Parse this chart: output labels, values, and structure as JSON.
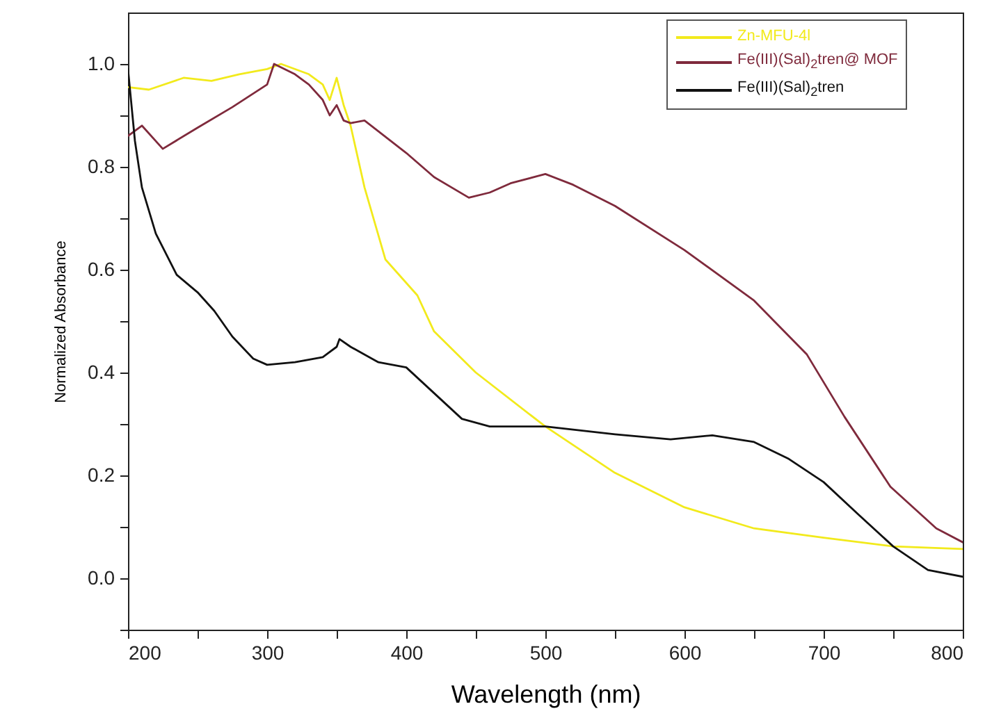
{
  "chart_data": {
    "type": "line",
    "xlabel": "Wavelength (nm)",
    "ylabel": "Normalized Absorbance",
    "xlim": [
      200,
      800
    ],
    "ylim": [
      -0.1,
      1.1
    ],
    "xticks": [
      200,
      {
        "value": 250,
        "label": null
      },
      300,
      {
        "value": 350,
        "label": null
      },
      400,
      {
        "value": 450,
        "label": null
      },
      500,
      {
        "value": 550,
        "label": null
      },
      600,
      {
        "value": 650,
        "label": null
      },
      700,
      {
        "value": 750,
        "label": null
      },
      800
    ],
    "yticks": [
      {
        "value": -0.1,
        "label": null
      },
      {
        "value": 0,
        "label": "0.0"
      },
      {
        "value": 0.1,
        "label": null
      },
      {
        "value": 0.2,
        "label": "0.2"
      },
      {
        "value": 0.3,
        "label": null
      },
      {
        "value": 0.4,
        "label": "0.4"
      },
      {
        "value": 0.5,
        "label": null
      },
      {
        "value": 0.6,
        "label": "0.6"
      },
      {
        "value": 0.7,
        "label": null
      },
      {
        "value": 0.8,
        "label": "0.8"
      },
      {
        "value": 0.9,
        "label": null
      },
      {
        "value": 1.0,
        "label": "1.0"
      }
    ],
    "grid": false,
    "legend": "top right",
    "marker": "none",
    "line_style": "solid",
    "series": [
      {
        "name": "Zn-MFU-4l",
        "color": "#f2ea1c",
        "x": [
          200,
          215,
          240,
          260,
          280,
          300,
          310,
          330,
          340,
          345,
          350,
          355,
          360,
          370,
          385,
          408,
          420,
          450,
          500,
          550,
          600,
          650,
          700,
          750,
          800
        ],
        "values": [
          0.955,
          0.95,
          0.973,
          0.967,
          0.98,
          0.99,
          1.0,
          0.98,
          0.96,
          0.93,
          0.973,
          0.92,
          0.88,
          0.76,
          0.62,
          0.55,
          0.48,
          0.4,
          0.295,
          0.205,
          0.138,
          0.097,
          0.079,
          0.062,
          0.057
        ]
      },
      {
        "name": "Fe(III)(Sal)$_{2}$tren@ MOF",
        "color": "#7f2a3c",
        "x": [
          200,
          210,
          225,
          250,
          275,
          300,
          305,
          320,
          330,
          340,
          345,
          350,
          355,
          360,
          370,
          400,
          420,
          445,
          460,
          475,
          500,
          520,
          550,
          600,
          650,
          688,
          715,
          748,
          781,
          800
        ],
        "values": [
          0.86,
          0.88,
          0.835,
          0.876,
          0.916,
          0.96,
          1.0,
          0.98,
          0.96,
          0.93,
          0.9,
          0.92,
          0.89,
          0.885,
          0.89,
          0.827,
          0.78,
          0.74,
          0.75,
          0.768,
          0.786,
          0.765,
          0.724,
          0.638,
          0.54,
          0.435,
          0.314,
          0.178,
          0.097,
          0.07
        ]
      },
      {
        "name": "Fe(III)(Sal)$_{2}$tren",
        "color": "#111111",
        "x": [
          200,
          205,
          210,
          220,
          235,
          250,
          262,
          275,
          290,
          300,
          320,
          340,
          350,
          352,
          360,
          380,
          400,
          420,
          440,
          460,
          500,
          550,
          590,
          620,
          650,
          675,
          700,
          725,
          750,
          775,
          800
        ],
        "values": [
          0.99,
          0.85,
          0.76,
          0.67,
          0.59,
          0.556,
          0.52,
          0.47,
          0.427,
          0.415,
          0.42,
          0.43,
          0.45,
          0.465,
          0.45,
          0.42,
          0.41,
          0.36,
          0.31,
          0.295,
          0.295,
          0.28,
          0.27,
          0.278,
          0.265,
          0.232,
          0.187,
          0.124,
          0.062,
          0.016,
          0.003
        ]
      }
    ]
  }
}
